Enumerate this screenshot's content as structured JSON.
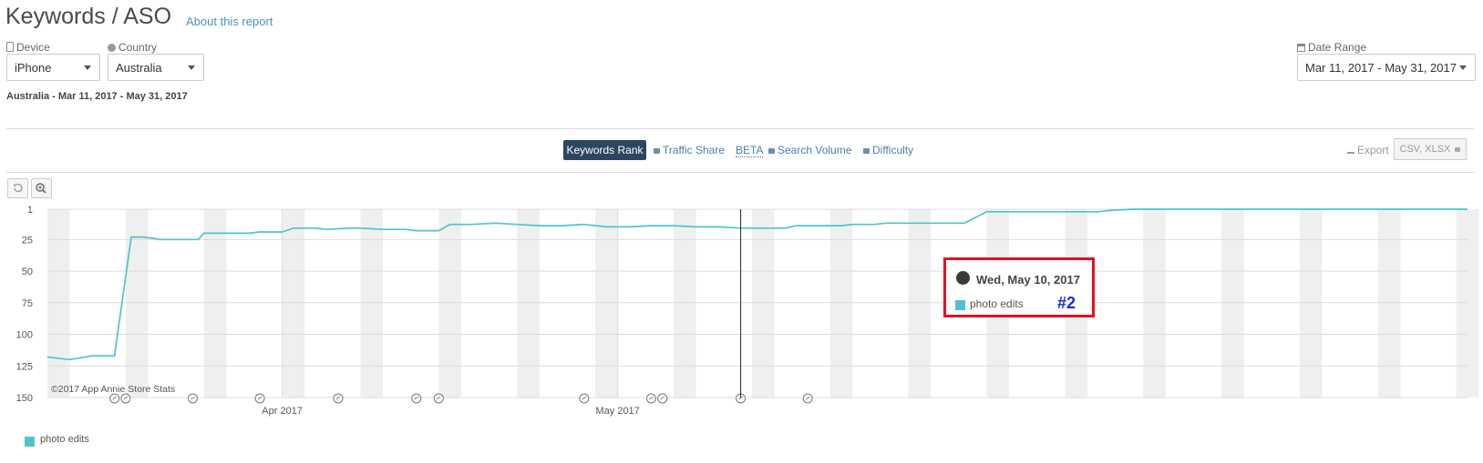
{
  "header": {
    "title": "Keywords / ASO",
    "about_link": "About this report"
  },
  "filters": {
    "device_label": "Device",
    "device_value": "iPhone",
    "country_label": "Country",
    "country_value": "Australia",
    "date_range_label": "Date Range",
    "date_range_value": "Mar 11, 2017 - May 31, 2017"
  },
  "summary": "Australia - Mar 11, 2017 - May 31, 2017",
  "tabs": {
    "keywords_rank": "Keywords Rank",
    "traffic_share": "Traffic Share",
    "beta": "BETA",
    "search_volume": "Search Volume",
    "difficulty": "Difficulty"
  },
  "export": {
    "label": "Export",
    "formats": "CSV, XLSX"
  },
  "tooltip": {
    "date": "Wed, May 10, 2017",
    "series": "photo edits",
    "rank": "#2"
  },
  "colors": {
    "series": "#4fc3cd",
    "highlight_border": "#e8101d",
    "rank_text": "#1a2ccf",
    "nav_dark": "#2c4660"
  },
  "chart_data": {
    "type": "line",
    "title": "Keywords Rank",
    "credit": "©2017 App Annie Store Stats",
    "yaxis": {
      "ticks": [
        1,
        25,
        50,
        75,
        100,
        125,
        150
      ],
      "inverted": true,
      "ylim": [
        1,
        150
      ]
    },
    "xaxis": {
      "start_day": 0,
      "end_day": 81,
      "labels": [
        {
          "day": 21,
          "text": "Apr 2017"
        },
        {
          "day": 51,
          "text": "May 2017"
        }
      ]
    },
    "series": [
      {
        "name": "photo edits",
        "color": "#4fc3cd",
        "points": [
          [
            0,
            118
          ],
          [
            2,
            120
          ],
          [
            4,
            117
          ],
          [
            6,
            117
          ],
          [
            7.5,
            23
          ],
          [
            8.5,
            23
          ],
          [
            9.5,
            24
          ],
          [
            10,
            25
          ],
          [
            12,
            25
          ],
          [
            13.5,
            25
          ],
          [
            14,
            20
          ],
          [
            16,
            20
          ],
          [
            18,
            20
          ],
          [
            19,
            19
          ],
          [
            21,
            19
          ],
          [
            22,
            16
          ],
          [
            24,
            16
          ],
          [
            25,
            17
          ],
          [
            27,
            16
          ],
          [
            28,
            16
          ],
          [
            30,
            17
          ],
          [
            32,
            17
          ],
          [
            33,
            18
          ],
          [
            35,
            18
          ],
          [
            36,
            13
          ],
          [
            38,
            13
          ],
          [
            40,
            12
          ],
          [
            42,
            13
          ],
          [
            44,
            14
          ],
          [
            46,
            14
          ],
          [
            48,
            13
          ],
          [
            50,
            15
          ],
          [
            52,
            15
          ],
          [
            54,
            14
          ],
          [
            56,
            14
          ],
          [
            58,
            15
          ],
          [
            60,
            15
          ],
          [
            62,
            16
          ],
          [
            64,
            16
          ],
          [
            66,
            16
          ],
          [
            67,
            14
          ],
          [
            70,
            14
          ],
          [
            71,
            14
          ],
          [
            72,
            13
          ],
          [
            74,
            13
          ],
          [
            75,
            12
          ],
          [
            80,
            12
          ],
          [
            82,
            12
          ],
          [
            84,
            3
          ],
          [
            86,
            3
          ],
          [
            88,
            3
          ],
          [
            90,
            3
          ],
          [
            92,
            3
          ],
          [
            94,
            3
          ],
          [
            95,
            2
          ],
          [
            97,
            1
          ],
          [
            100,
            1
          ],
          [
            103,
            1
          ],
          [
            106,
            1
          ],
          [
            109,
            1
          ],
          [
            112,
            1
          ],
          [
            115,
            1
          ],
          [
            118,
            1
          ],
          [
            121,
            1
          ],
          [
            124,
            1
          ],
          [
            127,
            1
          ]
        ]
      }
    ],
    "markers_days": [
      6,
      7,
      13,
      19,
      26,
      33,
      35,
      48,
      54,
      55,
      62,
      68
    ],
    "highlight_day": 62
  }
}
